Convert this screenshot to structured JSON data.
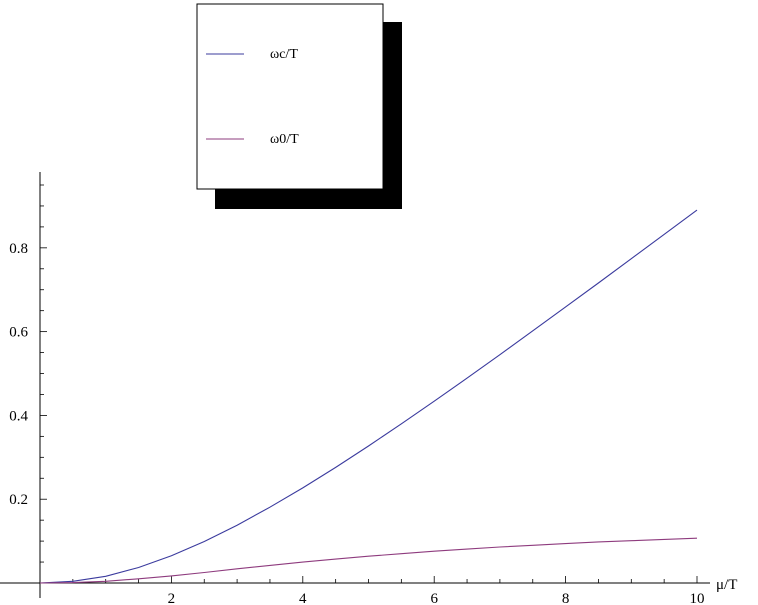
{
  "chart_data": {
    "type": "line",
    "xlabel": "μ/T",
    "ylabel": "",
    "xlim": [
      0,
      10
    ],
    "ylim": [
      0,
      0.95
    ],
    "x_ticks": [
      2,
      4,
      6,
      8,
      10
    ],
    "x_tick_labels": [
      "2",
      "4",
      "6",
      "8",
      "10"
    ],
    "y_ticks": [
      0.2,
      0.4,
      0.6,
      0.8
    ],
    "y_tick_labels": [
      "0.2",
      "0.4",
      "0.6",
      "0.8"
    ],
    "grid": false,
    "legend_position": "top-center",
    "legend": [
      "ωc/T",
      "ω0/T"
    ],
    "series": [
      {
        "name": "ωc/T",
        "color": "#3b3b9e",
        "x": [
          0,
          0.5,
          1,
          1.5,
          2,
          2.5,
          3,
          3.5,
          4,
          4.5,
          5,
          5.5,
          6,
          6.5,
          7,
          7.5,
          8,
          8.5,
          9,
          9.5,
          10
        ],
        "y": [
          0,
          0.004,
          0.016,
          0.037,
          0.065,
          0.099,
          0.138,
          0.181,
          0.227,
          0.276,
          0.327,
          0.38,
          0.434,
          0.489,
          0.545,
          0.602,
          0.659,
          0.716,
          0.774,
          0.832,
          0.89
        ]
      },
      {
        "name": "ω0/T",
        "color": "#8e3b7e",
        "x": [
          0,
          0.5,
          1,
          1.5,
          2,
          2.5,
          3,
          3.5,
          4,
          4.5,
          5,
          5.5,
          6,
          6.5,
          7,
          7.5,
          8,
          8.5,
          9,
          9.5,
          10
        ],
        "y": [
          0,
          0.001,
          0.004,
          0.01,
          0.017,
          0.025,
          0.034,
          0.042,
          0.05,
          0.057,
          0.064,
          0.07,
          0.076,
          0.081,
          0.086,
          0.09,
          0.094,
          0.098,
          0.101,
          0.104,
          0.107
        ]
      }
    ]
  }
}
